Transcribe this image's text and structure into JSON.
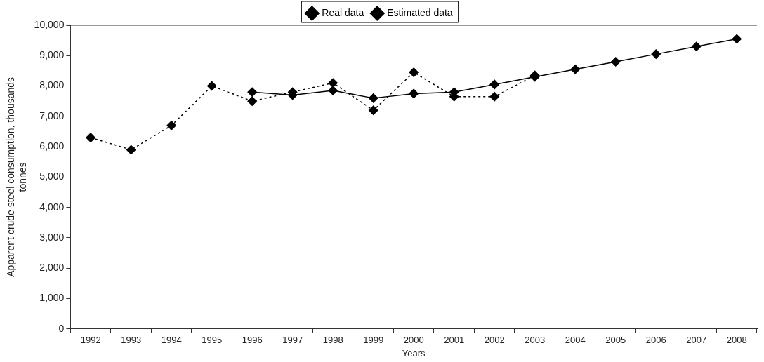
{
  "chart_data": {
    "type": "line",
    "xlabel": "Years",
    "ylabel": "Apparent crude steel consumption, thousands tonnes",
    "categories": [
      "1992",
      "1993",
      "1994",
      "1995",
      "1996",
      "1997",
      "1998",
      "1999",
      "2000",
      "2001",
      "2002",
      "2003",
      "2004",
      "2005",
      "2006",
      "2007",
      "2008"
    ],
    "series": [
      {
        "name": "Real data",
        "color": "#000000",
        "line_style": "dotted",
        "values": [
          6300,
          5900,
          6700,
          8000,
          7500,
          7800,
          8100,
          7200,
          8450,
          7650,
          7650,
          8350,
          null,
          null,
          null,
          null,
          null
        ]
      },
      {
        "name": "Estimated data",
        "color": "#000000",
        "line_style": "solid",
        "values": [
          null,
          null,
          null,
          null,
          7800,
          7700,
          7850,
          7600,
          7750,
          7800,
          8050,
          8300,
          8550,
          8800,
          9050,
          9300,
          9550
        ]
      }
    ],
    "ylim": [
      0,
      10000
    ],
    "yticks": [
      0,
      {
        "value": 1000,
        "label": "1,000"
      },
      {
        "value": 2000,
        "label": "2,000"
      },
      {
        "value": 3000,
        "label": "3,000"
      },
      {
        "value": 4000,
        "label": "4,000"
      },
      {
        "value": 5000,
        "label": "5,000"
      },
      {
        "value": 6000,
        "label": "6,000"
      },
      {
        "value": 7000,
        "label": "7,000"
      },
      {
        "value": 8000,
        "label": "8,000"
      },
      {
        "value": 9000,
        "label": "9,000"
      },
      {
        "value": 10000,
        "label": "10,000"
      }
    ],
    "grid": false,
    "legend": "top",
    "marker": "diamond"
  }
}
